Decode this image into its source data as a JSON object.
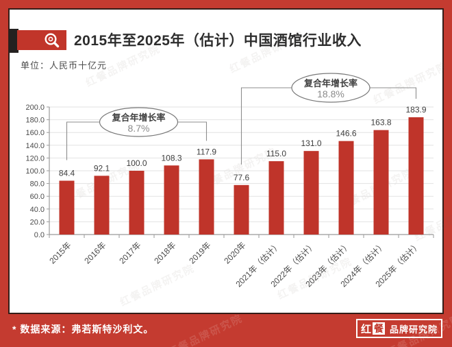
{
  "header": {
    "title": "2015年至2025年（估计）中国酒馆行业收入",
    "unit_label": "单位：人民币十亿元"
  },
  "chart_data": {
    "type": "bar",
    "title": "2015年至2025年（估计）中国酒馆行业收入",
    "ylabel": "人民币十亿元",
    "categories": [
      "2015年",
      "2016年",
      "2017年",
      "2018年",
      "2019年",
      "2020年",
      "2021年（估计）",
      "2022年（估计）",
      "2023年（估计）",
      "2024年（估计）",
      "2025年（估计）"
    ],
    "values": [
      84.4,
      92.1,
      100.0,
      108.3,
      117.9,
      77.6,
      115.0,
      131.0,
      146.6,
      163.8,
      183.9
    ],
    "ylim": [
      0,
      200
    ],
    "ytick_step": 20,
    "grid": true,
    "legend": "none",
    "bar_color": "#bf342a",
    "annotations": [
      {
        "label": "复合年增长率",
        "value": "8.7%",
        "from_index": 0,
        "to_index": 4
      },
      {
        "label": "复合年增长率",
        "value": "18.8%",
        "from_index": 5,
        "to_index": 10
      }
    ]
  },
  "footer": {
    "source_note": "* 数据来源：弗若斯特沙利文。",
    "logo": {
      "part1": "红",
      "part2": "餐",
      "part3": "品牌研究院"
    }
  },
  "watermark": {
    "text": "红餐品牌研究院"
  },
  "colors": {
    "frame_red": "#c43b30",
    "bar_red": "#bf342a",
    "badge_red": "#c1352a",
    "grid_gray": "#e2e2e2",
    "axis_gray": "#9a9a9a",
    "annotation_gray": "#8c8c8c",
    "text_dark": "#2d2d2d"
  }
}
